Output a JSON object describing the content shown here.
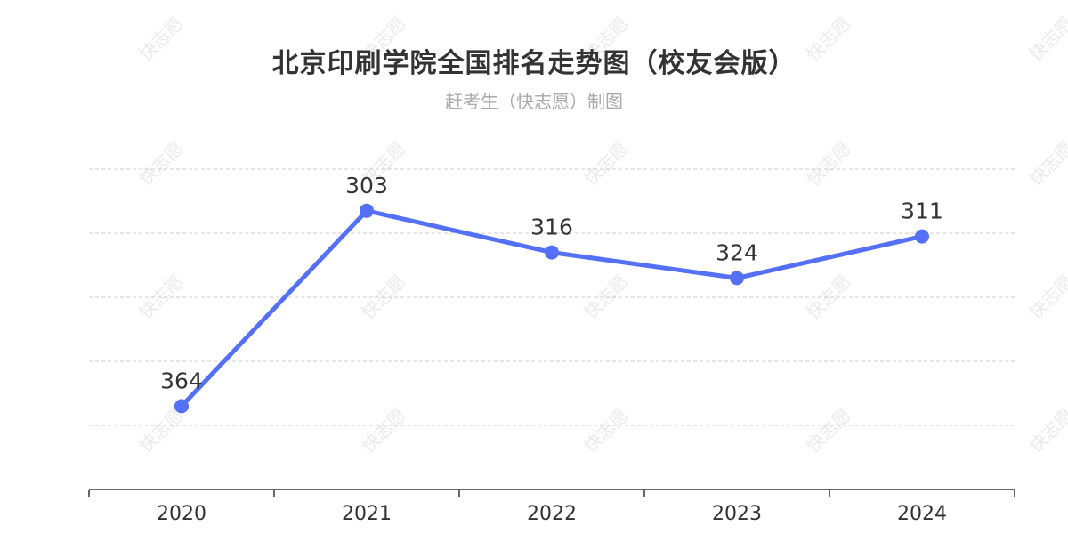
{
  "header": {
    "title": "北京印刷学院全国排名走势图（校友会版）",
    "subtitle": "赶考生（快志愿）制图"
  },
  "watermark": {
    "text": "快志愿"
  },
  "colors": {
    "line": "#5470f7",
    "grid": "#cccccc",
    "axis": "#333333",
    "label": "#333333",
    "title": "#333333",
    "subtitle": "#aaaaaa"
  },
  "chart_data": {
    "type": "line",
    "title": "北京印刷学院全国排名走势图（校友会版）",
    "subtitle": "赶考生（快志愿）制图",
    "categories": [
      "2020",
      "2021",
      "2022",
      "2023",
      "2024"
    ],
    "series": [
      {
        "values": [
          364,
          303,
          316,
          324,
          311
        ]
      }
    ],
    "y_axis": {
      "inverted": true,
      "range": [
        290,
        390
      ],
      "visible_labels": false
    },
    "grid": "horizontal dashed",
    "data_labels": true,
    "legend": "none"
  }
}
